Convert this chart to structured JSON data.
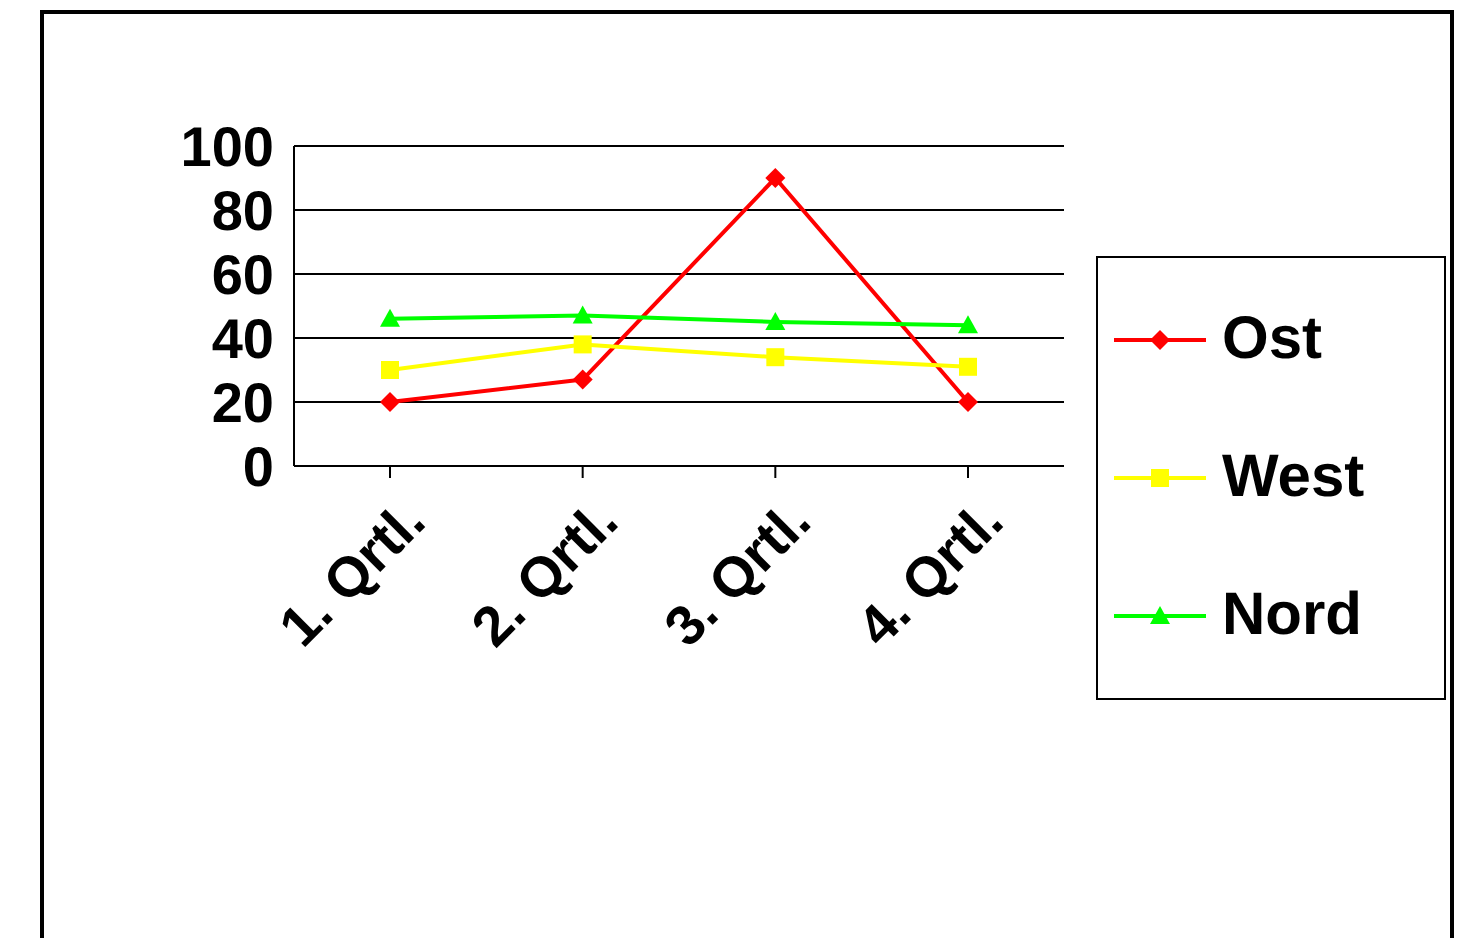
{
  "chart_data": {
    "type": "line",
    "categories": [
      "1. Qrtl.",
      "2. Qrtl.",
      "3. Qrtl.",
      "4. Qrtl."
    ],
    "series": [
      {
        "name": "Ost",
        "color": "#ff0000",
        "marker": "diamond",
        "values": [
          20,
          27,
          90,
          20
        ]
      },
      {
        "name": "West",
        "color": "#ffff00",
        "marker": "square",
        "values": [
          30,
          38,
          34,
          31
        ]
      },
      {
        "name": "Nord",
        "color": "#00ff00",
        "marker": "triangle",
        "values": [
          46,
          47,
          45,
          44
        ]
      }
    ],
    "ylim": [
      0,
      100
    ],
    "yticks": [
      0,
      20,
      40,
      60,
      80,
      100
    ],
    "grid": "y",
    "legend": "right"
  }
}
